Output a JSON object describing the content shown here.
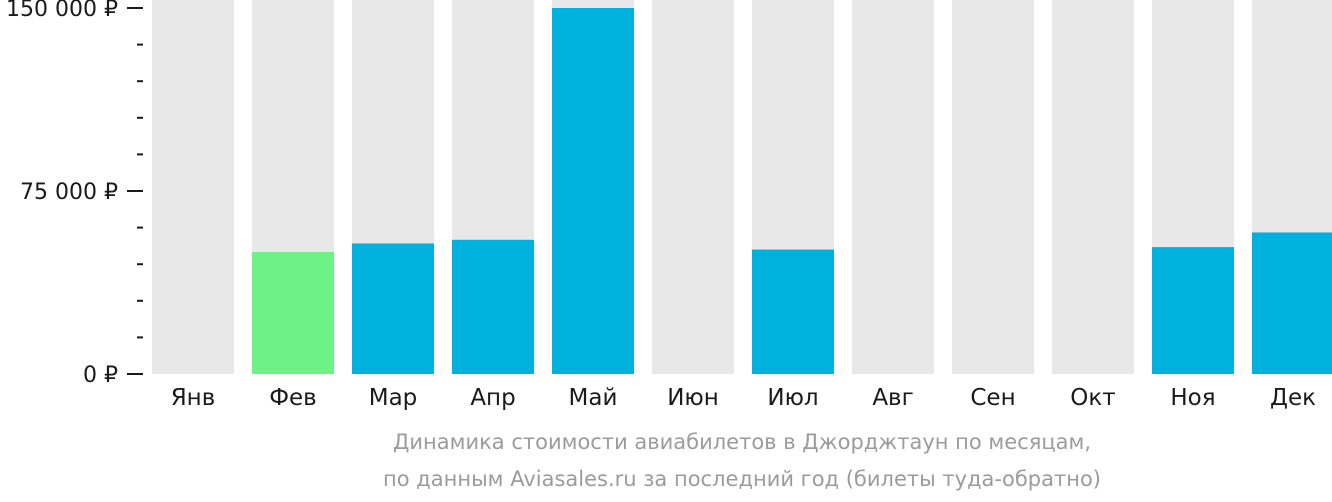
{
  "chart_data": {
    "type": "bar",
    "categories": [
      "Янв",
      "Фев",
      "Мар",
      "Апр",
      "Май",
      "Июн",
      "Июл",
      "Авг",
      "Сен",
      "Окт",
      "Ноя",
      "Дек"
    ],
    "values": [
      null,
      50000,
      53500,
      55000,
      150000,
      null,
      51000,
      null,
      null,
      null,
      52000,
      58000
    ],
    "ylim": [
      0,
      150000
    ],
    "yticks": [
      0,
      75000,
      150000
    ],
    "ytick_labels": [
      "0 ₽",
      "75 000 ₽",
      "150 000 ₽"
    ],
    "minor_ticks_between_major": 4,
    "grid": false,
    "legend": "none",
    "colors": {
      "bar_default": "#00b0dd",
      "bar_cheapest": "#6ef287",
      "bar_background": "#e8e8e8",
      "axis": "#1a1a1a",
      "caption": "#9b9b9b"
    },
    "cheapest_category": "Фев"
  },
  "caption": {
    "line1": "Динамика стоимости авиабилетов в Джорджтаун по месяцам,",
    "line2": "по данным Aviasales.ru за последний год (билеты туда-обратно)"
  }
}
